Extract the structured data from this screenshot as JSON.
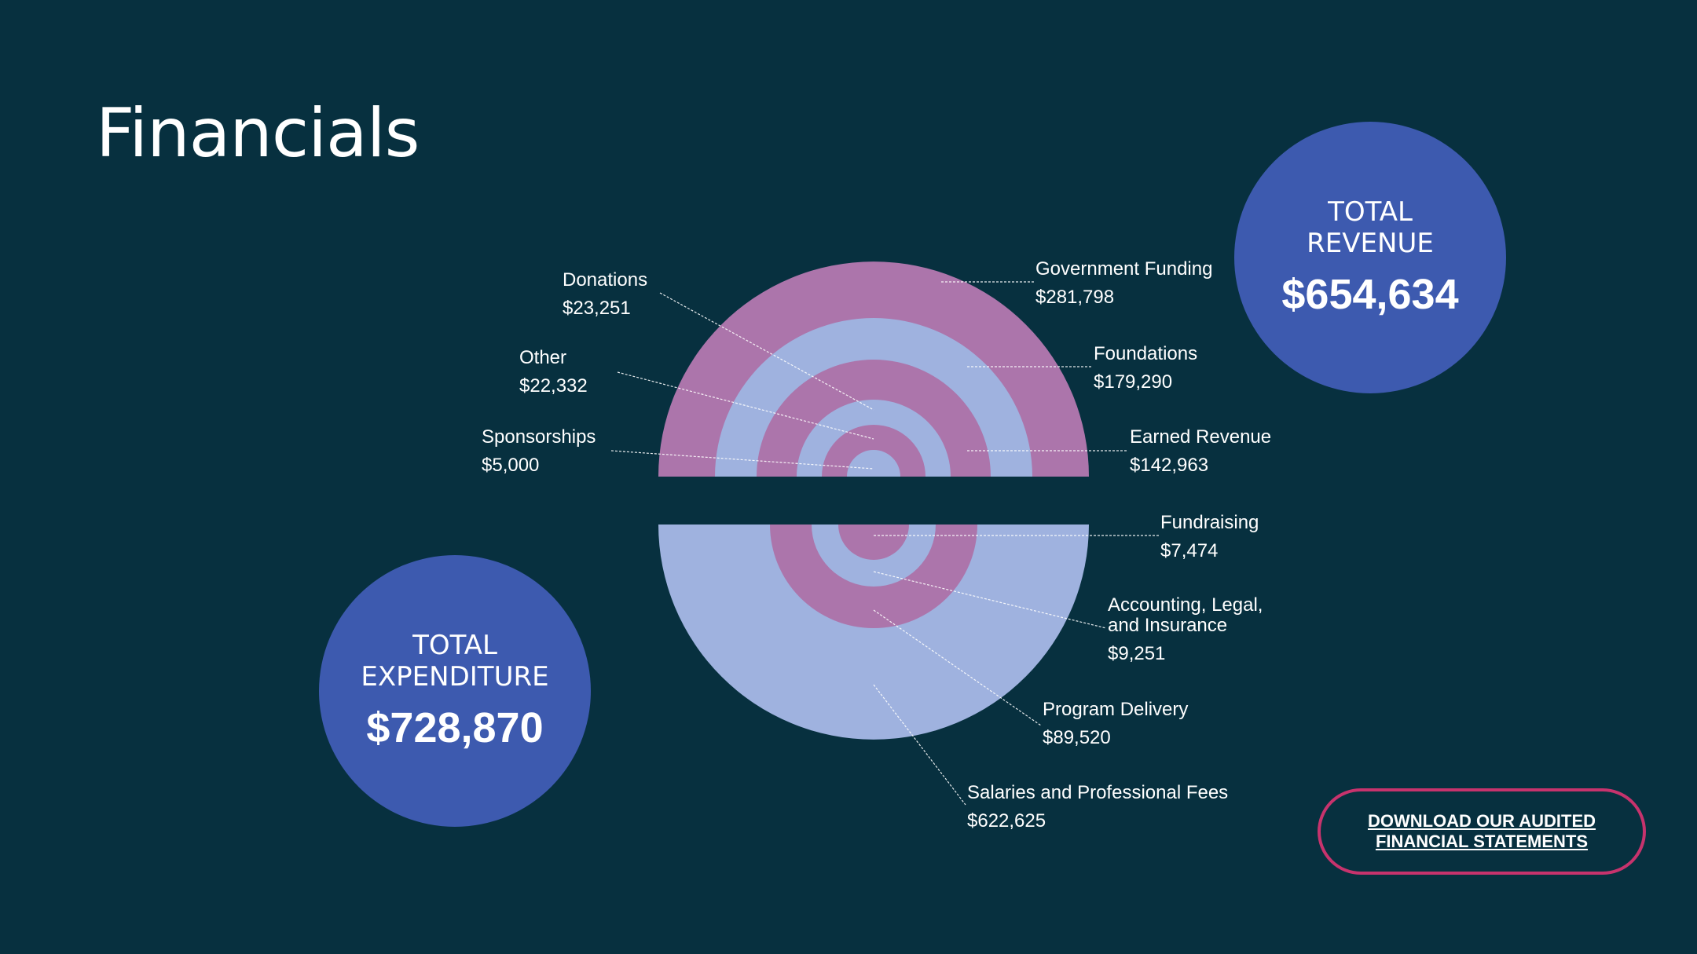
{
  "page": {
    "title": "Financials",
    "background_color": "#07303f"
  },
  "colors": {
    "pink": "#ac75ab",
    "blue": "#9fb2df",
    "circle": "#3d5aaf",
    "button_border": "#c7336d"
  },
  "totals": {
    "revenue": {
      "label": "TOTAL REVENUE",
      "value": "$654,634"
    },
    "expenditure": {
      "label": "TOTAL EXPENDITURE",
      "value": "$728,870"
    }
  },
  "download": {
    "label": "DOWNLOAD OUR AUDITED FINANCIAL STATEMENTS"
  },
  "chart_data": [
    {
      "type": "pie",
      "title": "Revenue",
      "orientation": "upper-half",
      "series": [
        {
          "name": "Government Funding",
          "value": 281798,
          "display": "$281,798",
          "color": "pink"
        },
        {
          "name": "Foundations",
          "value": 179290,
          "display": "$179,290",
          "color": "blue"
        },
        {
          "name": "Earned Revenue",
          "value": 142963,
          "display": "$142,963",
          "color": "pink"
        },
        {
          "name": "Donations",
          "value": 23251,
          "display": "$23,251",
          "color": "blue"
        },
        {
          "name": "Other",
          "value": 22332,
          "display": "$22,332",
          "color": "pink"
        },
        {
          "name": "Sponsorships",
          "value": 5000,
          "display": "$5,000",
          "color": "blue"
        }
      ]
    },
    {
      "type": "pie",
      "title": "Expenditure",
      "orientation": "lower-half",
      "series": [
        {
          "name": "Salaries and Professional Fees",
          "value": 622625,
          "display": "$622,625",
          "color": "blue"
        },
        {
          "name": "Program Delivery",
          "value": 89520,
          "display": "$89,520",
          "color": "pink"
        },
        {
          "name": "Accounting, Legal, and Insurance",
          "value": 9251,
          "display": "$9,251",
          "color": "blue"
        },
        {
          "name": "Fundraising",
          "value": 7474,
          "display": "$7,474",
          "color": "pink"
        }
      ]
    }
  ]
}
